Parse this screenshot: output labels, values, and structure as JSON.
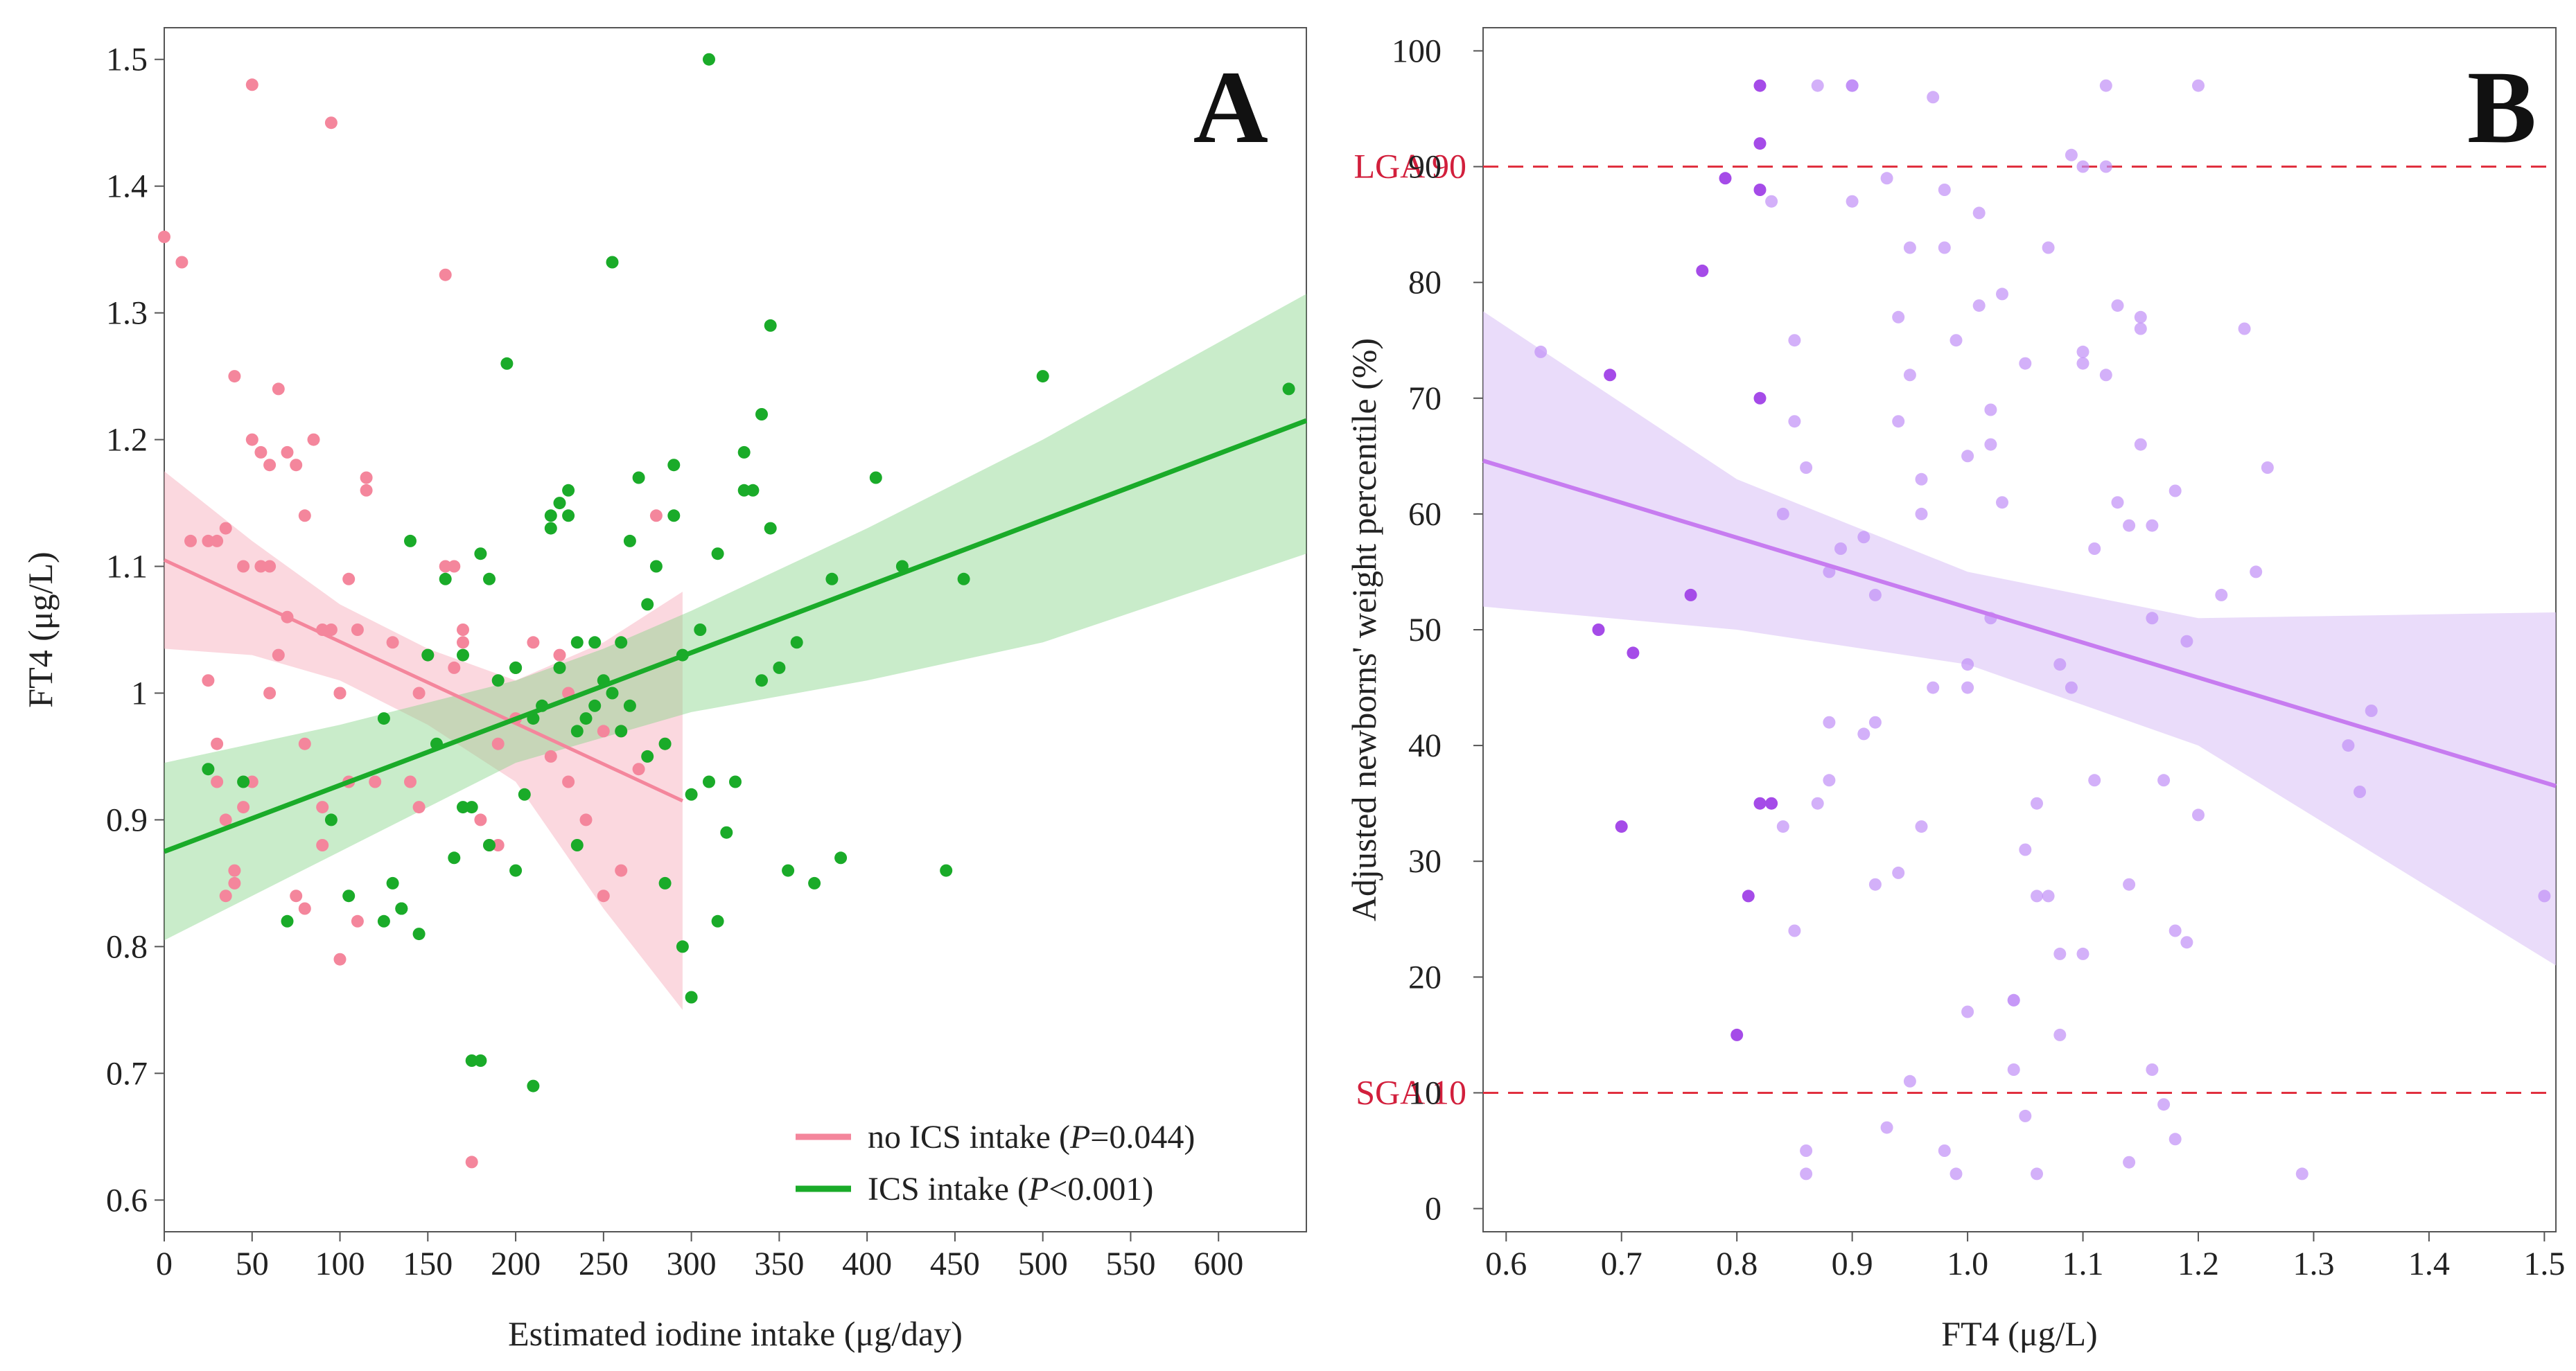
{
  "colors": {
    "no_ics": "#f4869c",
    "ics": "#1aab29",
    "ics_band": "#88d48a",
    "no_ics_band": "#f7b8c4",
    "b_points": "#c08ef7",
    "b_points_dark": "#a54be8",
    "b_line": "#c77cf0",
    "b_band": "#dcc4f7",
    "ref_line": "#e0303f"
  },
  "chart_data": [
    {
      "type": "scatter",
      "panel_label": "A",
      "xlabel": "Estimated iodine intake (μg/day)",
      "ylabel": "FT4 (μg/L)",
      "xlim": [
        0,
        650
      ],
      "ylim": [
        0.575,
        1.525
      ],
      "xticks": [
        0,
        50,
        100,
        150,
        200,
        250,
        300,
        350,
        400,
        450,
        500,
        550,
        600
      ],
      "yticks": [
        0.6,
        0.7,
        0.8,
        0.9,
        1.0,
        1.1,
        1.2,
        1.3,
        1.4,
        1.5
      ],
      "ytick_labels": [
        "0.6",
        "0.7",
        "0.8",
        "0.9",
        "1",
        "1.1",
        "1.2",
        "1.3",
        "1.4",
        "1.5"
      ],
      "legend": {
        "position": "bottom-right",
        "entries": [
          {
            "prefix": "no ICS intake (",
            "p_symbol": "P",
            "suffix": "=0.044)"
          },
          {
            "prefix": "ICS intake (",
            "p_symbol": "P",
            "suffix": "<0.001)"
          }
        ]
      },
      "series": [
        {
          "name": "no ICS intake",
          "color_key": "no_ics",
          "band_color_key": "no_ics_band",
          "fit": {
            "x": [
              0,
              295
            ],
            "y": [
              1.105,
              0.915
            ]
          },
          "band": {
            "x": [
              0,
              50,
              100,
              150,
              200,
              250,
              295
            ],
            "upper": [
              1.175,
              1.12,
              1.07,
              1.035,
              1.01,
              1.04,
              1.08
            ],
            "lower": [
              1.035,
              1.03,
              1.01,
              0.975,
              0.93,
              0.83,
              0.75
            ]
          },
          "x": [
            0,
            10,
            15,
            25,
            30,
            35,
            40,
            45,
            50,
            55,
            60,
            65,
            70,
            75,
            80,
            85,
            90,
            95,
            100,
            105,
            110,
            115,
            25,
            30,
            35,
            40,
            50,
            55,
            65,
            70,
            80,
            90,
            100,
            110,
            120,
            130,
            140,
            145,
            160,
            165,
            170,
            180,
            185,
            190,
            200,
            210,
            220,
            230,
            240,
            250,
            260,
            270,
            280,
            285,
            50,
            95,
            165,
            160,
            175,
            190,
            230,
            250,
            260,
            30,
            40,
            45,
            60,
            75,
            90,
            100,
            115,
            145,
            170,
            200,
            225,
            35,
            60,
            80,
            105,
            150
          ],
          "y": [
            1.36,
            1.34,
            1.12,
            1.12,
            1.12,
            1.13,
            1.25,
            1.1,
            1.2,
            1.19,
            1.18,
            1.24,
            1.19,
            1.18,
            1.14,
            1.2,
            1.05,
            1.05,
            1.0,
            1.09,
            1.05,
            1.17,
            1.01,
            0.96,
            0.9,
            0.86,
            0.93,
            1.1,
            1.03,
            1.06,
            0.96,
            0.91,
            0.79,
            0.82,
            0.93,
            1.04,
            0.93,
            1.0,
            1.33,
            1.02,
            1.05,
            0.9,
            0.88,
            0.96,
            0.98,
            1.04,
            0.95,
            1.0,
            0.9,
            0.84,
            0.97,
            0.94,
            1.14,
            0.96,
            1.48,
            1.45,
            1.1,
            1.1,
            0.63,
            0.88,
            0.93,
            0.97,
            0.86,
            0.93,
            0.85,
            0.91,
            1.0,
            0.84,
            0.88,
            1.0,
            1.16,
            0.91,
            1.04,
            1.02,
            1.03,
            0.84,
            1.1,
            0.83,
            0.93,
            1.03
          ]
        },
        {
          "name": "ICS intake",
          "color_key": "ics",
          "band_color_key": "ics_band",
          "fit": {
            "x": [
              0,
              650
            ],
            "y": [
              0.875,
              1.215
            ]
          },
          "band": {
            "x": [
              0,
              100,
              200,
              250,
              300,
              400,
              500,
              650
            ],
            "upper": [
              0.945,
              0.975,
              1.01,
              1.035,
              1.065,
              1.13,
              1.2,
              1.315
            ],
            "lower": [
              0.805,
              0.875,
              0.945,
              0.965,
              0.985,
              1.01,
              1.04,
              1.11
            ]
          },
          "x": [
            25,
            45,
            70,
            95,
            105,
            125,
            130,
            135,
            140,
            145,
            155,
            160,
            170,
            175,
            180,
            185,
            190,
            195,
            200,
            205,
            210,
            215,
            220,
            225,
            230,
            235,
            240,
            245,
            250,
            255,
            260,
            265,
            270,
            275,
            280,
            285,
            290,
            295,
            300,
            305,
            310,
            315,
            320,
            325,
            330,
            335,
            340,
            345,
            350,
            355,
            360,
            370,
            380,
            385,
            405,
            420,
            445,
            455,
            500,
            640,
            310,
            255,
            345,
            200,
            180,
            210,
            165,
            185,
            225,
            235,
            245,
            265,
            275,
            285,
            295,
            315,
            330,
            135,
            150,
            170,
            290,
            300,
            340,
            235,
            220,
            260,
            230,
            200,
            175,
            125
          ],
          "y": [
            0.94,
            0.93,
            0.82,
            0.9,
            0.84,
            0.98,
            0.85,
            0.83,
            1.12,
            0.81,
            0.96,
            1.09,
            0.91,
            0.91,
            1.11,
            0.88,
            1.01,
            1.26,
            0.86,
            0.92,
            0.69,
            0.99,
            1.13,
            1.02,
            1.14,
            0.88,
            0.98,
            0.99,
            1.01,
            1.34,
            1.04,
            1.12,
            1.17,
            0.95,
            1.1,
            0.85,
            1.18,
            0.8,
            0.76,
            1.05,
            0.93,
            1.11,
            0.89,
            0.93,
            1.19,
            1.16,
            1.22,
            1.13,
            1.02,
            0.86,
            1.04,
            0.85,
            1.09,
            0.87,
            1.17,
            1.1,
            0.86,
            1.09,
            1.25,
            1.24,
            1.5,
            1.0,
            1.29,
            1.02,
            0.71,
            0.98,
            0.87,
            1.09,
            1.15,
            1.04,
            1.04,
            0.99,
            1.07,
            0.96,
            1.03,
            0.82,
            1.16,
            0.83,
            1.03,
            1.03,
            1.14,
            0.92,
            1.01,
            0.97,
            1.14,
            0.97,
            1.16,
            1.02,
            0.71,
            0.82
          ]
        }
      ]
    },
    {
      "type": "scatter",
      "panel_label": "B",
      "xlabel": "FT4 (μg/L)",
      "ylabel": "Adjusted newborns' weight percentile (%)",
      "xlim": [
        0.58,
        1.51
      ],
      "ylim": [
        -2,
        102
      ],
      "xticks": [
        0.6,
        0.7,
        0.8,
        0.9,
        1.0,
        1.1,
        1.2,
        1.3,
        1.4,
        1.5
      ],
      "xtick_labels": [
        "0.6",
        "0.7",
        "0.8",
        "0.9",
        "1.0",
        "1.1",
        "1.2",
        "1.3",
        "1.4",
        "1.5"
      ],
      "yticks": [
        0,
        10,
        20,
        30,
        40,
        50,
        60,
        70,
        80,
        90,
        100
      ],
      "reference_lines": [
        {
          "label": "LGA 90",
          "y": 90
        },
        {
          "label": "SGA 10",
          "y": 10
        }
      ],
      "fit": {
        "x": [
          0.58,
          1.51
        ],
        "y": [
          64.6,
          36.5
        ]
      },
      "band": {
        "x": [
          0.58,
          0.8,
          1.0,
          1.2,
          1.51
        ],
        "upper": [
          77.5,
          63,
          55,
          51,
          51.5
        ],
        "lower": [
          52,
          50,
          47,
          40,
          21
        ]
      },
      "series": [
        {
          "name": "highlighted points",
          "color_key": "b_points_dark",
          "x": [
            0.82,
            0.82,
            0.79,
            0.82,
            0.77,
            0.69,
            0.82,
            0.76,
            0.68,
            0.71,
            0.82,
            0.83,
            0.7,
            0.81,
            0.8
          ],
          "y": [
            97,
            92,
            89,
            88,
            81,
            72,
            70,
            53,
            50,
            48,
            35,
            35,
            33,
            27,
            15
          ]
        },
        {
          "name": "other points",
          "color_key": "b_points",
          "x": [
            0.63,
            0.83,
            0.84,
            0.85,
            0.86,
            0.87,
            0.88,
            0.9,
            0.91,
            0.92,
            0.93,
            0.94,
            0.95,
            0.96,
            0.97,
            0.98,
            0.99,
            1.0,
            1.01,
            1.02,
            1.03,
            1.04,
            1.05,
            1.06,
            1.07,
            1.08,
            1.09,
            1.1,
            1.11,
            1.12,
            1.13,
            1.14,
            1.15,
            1.16,
            1.17,
            1.18,
            1.19,
            1.2,
            1.22,
            1.24,
            1.25,
            1.26,
            1.29,
            1.33,
            1.34,
            1.35,
            1.5,
            0.86,
            0.88,
            0.9,
            0.92,
            0.94,
            0.96,
            0.98,
            1.0,
            1.02,
            1.04,
            1.06,
            1.08,
            1.1,
            1.12,
            1.14,
            1.16,
            1.18,
            0.85,
            0.87,
            0.89,
            0.91,
            0.93,
            0.95,
            0.97,
            0.99,
            1.01,
            1.03,
            1.05,
            1.07,
            1.09,
            1.11,
            1.13,
            1.15,
            1.17,
            1.19,
            0.84,
            0.86,
            0.88,
            0.9,
            0.92,
            0.94,
            0.96,
            0.98,
            1.0,
            1.02,
            1.04,
            1.06,
            1.08,
            1.1,
            1.12,
            1.14,
            1.16,
            1.18,
            1.2,
            0.85,
            0.9,
            0.95,
            1.0,
            1.05,
            1.1,
            1.15
          ],
          "y": [
            74,
            87,
            60,
            75,
            3,
            97,
            42,
            97,
            58,
            53,
            89,
            29,
            83,
            33,
            96,
            88,
            75,
            65,
            78,
            69,
            61,
            18,
            73,
            27,
            83,
            22,
            91,
            90,
            57,
            97,
            78,
            59,
            77,
            51,
            9,
            62,
            23,
            97,
            53,
            76,
            55,
            64,
            3,
            40,
            36,
            43,
            27,
            64,
            55,
            87,
            42,
            77,
            60,
            83,
            45,
            51,
            12,
            35,
            15,
            73,
            72,
            28,
            12,
            24,
            24,
            35,
            57,
            41,
            7,
            72,
            45,
            3,
            86,
            79,
            8,
            27,
            45,
            37,
            61,
            66,
            37,
            49,
            33,
            5,
            37,
            97,
            28,
            68,
            63,
            5,
            17,
            66,
            18,
            3,
            47,
            74,
            90,
            4,
            59,
            6,
            34,
            68,
            97,
            11,
            47,
            31,
            22,
            76
          ]
        }
      ]
    }
  ]
}
